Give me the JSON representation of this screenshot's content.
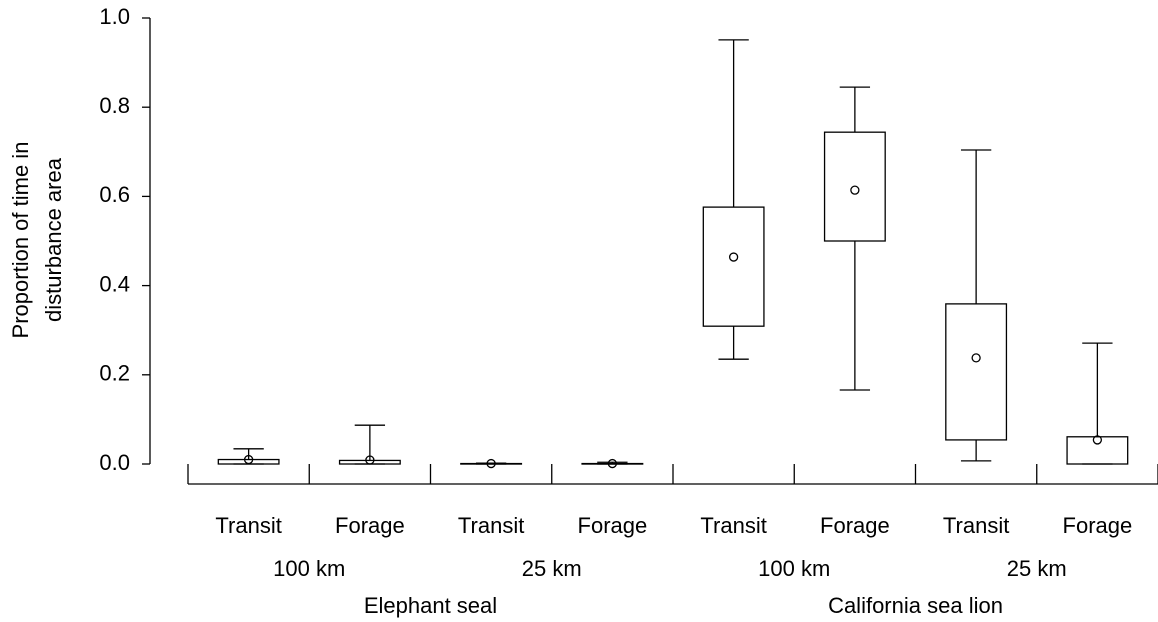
{
  "chart_data": {
    "type": "box",
    "y_label": [
      "Proportion of time in",
      "disturbance area"
    ],
    "categories": [
      "Transit",
      "Forage",
      "Transit",
      "Forage",
      "Transit",
      "Forage",
      "Transit",
      "Forage"
    ],
    "subgroups": [
      "100 km",
      "25 km",
      "100 km",
      "25 km"
    ],
    "groups": [
      "Elephant seal",
      "California sea lion"
    ],
    "color": "#000000",
    "boxes": [
      {
        "low": 0,
        "q1": 0,
        "q3": 0.01,
        "high": 0.034,
        "marker": 0.01
      },
      {
        "low": 0,
        "q1": 0,
        "q3": 0.008,
        "high": 0.087,
        "marker": 0.009
      },
      {
        "low": 0,
        "q1": 0,
        "q3": 0.001,
        "high": 0.002,
        "marker": 0.001
      },
      {
        "low": 0,
        "q1": 0,
        "q3": 0.001,
        "high": 0.004,
        "marker": 0.001
      },
      {
        "low": 0.235,
        "q1": 0.309,
        "q3": 0.576,
        "high": 0.951,
        "marker": 0.464
      },
      {
        "low": 0.166,
        "q1": 0.5,
        "q3": 0.744,
        "high": 0.845,
        "marker": 0.614
      },
      {
        "low": 0.007,
        "q1": 0.054,
        "q3": 0.359,
        "high": 0.704,
        "marker": 0.238
      },
      {
        "low": 0,
        "q1": 0,
        "q3": 0.061,
        "high": 0.271,
        "marker": 0.054
      }
    ],
    "ylim": [
      0,
      1
    ],
    "yticks": [
      {
        "value": 0,
        "label": "0.0"
      },
      0.2,
      0.4,
      0.6,
      0.8,
      {
        "value": 1,
        "label": "1.0"
      }
    ]
  }
}
